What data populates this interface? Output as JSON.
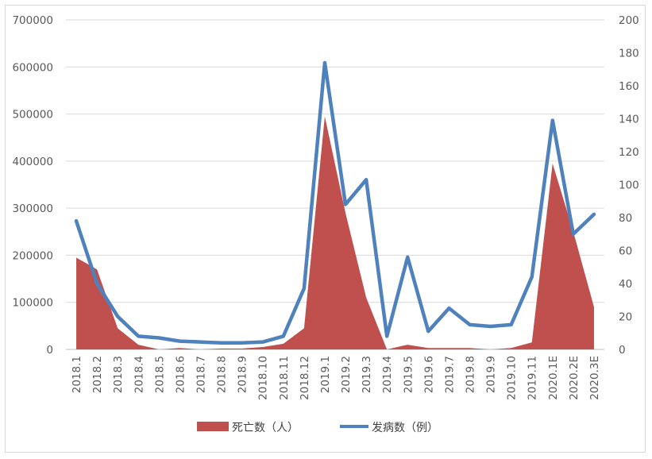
{
  "chart_data": {
    "type": "area+line",
    "categories": [
      "2018.1",
      "2018.2",
      "2018.3",
      "2018.4",
      "2018.5",
      "2018.6",
      "2018.7",
      "2018.8",
      "2018.9",
      "2018.10",
      "2018.11",
      "2018.12",
      "2019.1",
      "2019.2",
      "2019.3",
      "2019.4",
      "2019.5",
      "2019.6",
      "2019.7",
      "2019.8",
      "2019.9",
      "2019.10",
      "2019.11",
      "2020.1E",
      "2020.2E",
      "2020.3E"
    ],
    "left_axis": {
      "min": 0,
      "max": 700000,
      "step": 100000,
      "ticks": [
        "0",
        "100000",
        "200000",
        "300000",
        "400000",
        "500000",
        "600000",
        "700000"
      ]
    },
    "right_axis": {
      "min": 0,
      "max": 200,
      "step": 20,
      "ticks": [
        "0",
        "20",
        "40",
        "60",
        "80",
        "100",
        "120",
        "140",
        "160",
        "180",
        "200"
      ]
    },
    "series": [
      {
        "name": "死亡数（人）",
        "type": "area",
        "axis": "left",
        "color": "#c0504d",
        "values": [
          195000,
          170000,
          45000,
          10000,
          0,
          3000,
          0,
          2000,
          2000,
          5000,
          12000,
          45000,
          495000,
          290000,
          110000,
          0,
          10000,
          3000,
          3000,
          3000,
          0,
          3000,
          15000,
          395000,
          250000,
          90000
        ]
      },
      {
        "name": "发病数（例）",
        "type": "line",
        "axis": "right",
        "color": "#4f81bd",
        "values": [
          78,
          40,
          20,
          8,
          7,
          5,
          4.5,
          4,
          4,
          4.5,
          8,
          37,
          174,
          88,
          103,
          8,
          56,
          11,
          25,
          15,
          14,
          15,
          44,
          139,
          70,
          82
        ]
      }
    ],
    "gridlines": true,
    "legend_position": "bottom"
  }
}
